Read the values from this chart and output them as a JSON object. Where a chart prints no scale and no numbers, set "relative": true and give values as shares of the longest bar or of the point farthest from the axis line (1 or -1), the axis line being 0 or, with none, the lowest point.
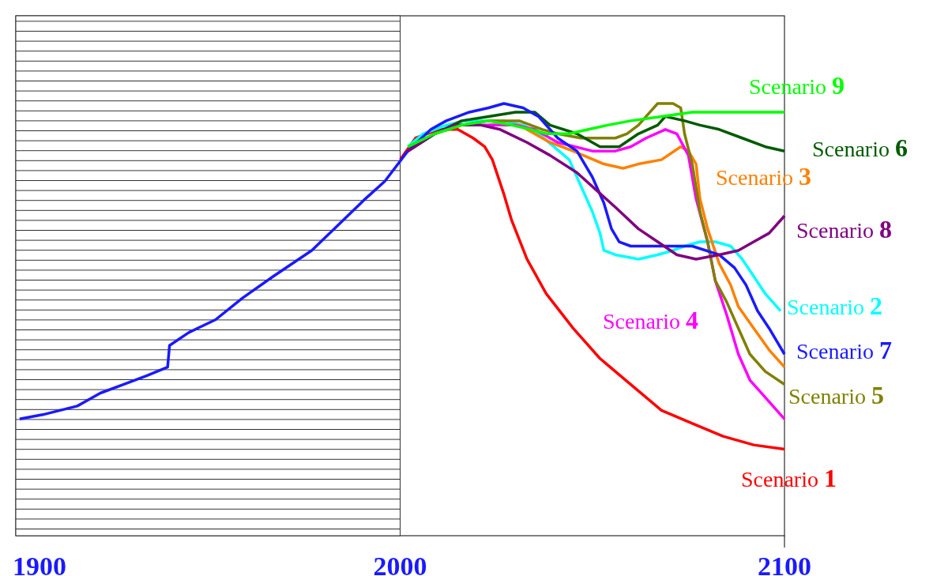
{
  "chart_data": {
    "type": "line",
    "relative": true,
    "xlim": [
      1900,
      2100
    ],
    "xticks": [
      1900,
      2000,
      2100
    ],
    "tick_labels": "x",
    "bands": [
      {
        "axis": "x",
        "from": 1900,
        "to": 2000
      }
    ],
    "series": [
      {
        "name": "Scenario 1",
        "color": "#ff0000",
        "x": [
          2000,
          2004,
          2010,
          2015,
          2019,
          2022,
          2024,
          2027,
          2029,
          2033,
          2038,
          2045,
          2052,
          2060,
          2068,
          2076,
          2084,
          2092,
          2100
        ],
        "values": [
          0.87,
          0.92,
          0.94,
          0.94,
          0.92,
          0.9,
          0.87,
          0.79,
          0.73,
          0.64,
          0.56,
          0.48,
          0.41,
          0.35,
          0.29,
          0.26,
          0.23,
          0.21,
          0.2
        ]
      },
      {
        "name": "Scenario 2",
        "color": "#00ffff",
        "x": [
          2002,
          2006,
          2012,
          2017,
          2022,
          2027,
          2032,
          2036,
          2040,
          2044,
          2047,
          2050,
          2052,
          2053,
          2056,
          2062,
          2067,
          2071,
          2074,
          2078,
          2082,
          2086,
          2089,
          2092,
          2095,
          2099
        ],
        "values": [
          0.9,
          0.93,
          0.95,
          0.96,
          0.96,
          0.96,
          0.95,
          0.93,
          0.9,
          0.87,
          0.81,
          0.75,
          0.7,
          0.66,
          0.65,
          0.64,
          0.65,
          0.66,
          0.67,
          0.68,
          0.68,
          0.67,
          0.64,
          0.6,
          0.56,
          0.52
        ]
      },
      {
        "name": "Scenario 3",
        "color": "#ff8000",
        "x": [
          2023,
          2031,
          2039,
          2045,
          2053,
          2058,
          2062,
          2068,
          2073,
          2075,
          2077,
          2078,
          2080,
          2083,
          2086,
          2088,
          2092,
          2096,
          2100
        ],
        "values": [
          0.95,
          0.95,
          0.91,
          0.89,
          0.86,
          0.85,
          0.86,
          0.87,
          0.9,
          0.89,
          0.86,
          0.78,
          0.71,
          0.63,
          0.58,
          0.53,
          0.48,
          0.43,
          0.39
        ]
      },
      {
        "name": "Scenario 4",
        "color": "#ff00ff",
        "x": [
          2015,
          2022,
          2030,
          2035,
          2041,
          2050,
          2056,
          2060,
          2064,
          2069,
          2072,
          2075,
          2077,
          2080,
          2082,
          2085,
          2088,
          2091,
          2095,
          2100
        ],
        "values": [
          0.95,
          0.95,
          0.95,
          0.94,
          0.91,
          0.89,
          0.89,
          0.9,
          0.92,
          0.94,
          0.93,
          0.88,
          0.78,
          0.68,
          0.59,
          0.51,
          0.42,
          0.36,
          0.32,
          0.27
        ]
      },
      {
        "name": "Scenario 5",
        "color": "#808000",
        "x": [
          2002,
          2009,
          2016,
          2023,
          2031,
          2037,
          2041,
          2047,
          2053,
          2056,
          2059,
          2062,
          2065,
          2067,
          2071,
          2073,
          2074,
          2076,
          2078,
          2080,
          2082,
          2085,
          2088,
          2091,
          2095,
          2100
        ],
        "values": [
          0.89,
          0.93,
          0.95,
          0.96,
          0.96,
          0.94,
          0.93,
          0.92,
          0.92,
          0.92,
          0.93,
          0.95,
          0.98,
          1.0,
          1.0,
          0.99,
          0.93,
          0.86,
          0.75,
          0.68,
          0.59,
          0.54,
          0.48,
          0.42,
          0.38,
          0.35
        ]
      },
      {
        "name": "Scenario 6",
        "color": "#005a00",
        "x": [
          2002,
          2009,
          2016,
          2023,
          2030,
          2035,
          2039,
          2046,
          2052,
          2057,
          2062,
          2067,
          2069,
          2074,
          2078,
          2083,
          2089,
          2095,
          2100
        ],
        "values": [
          0.89,
          0.93,
          0.96,
          0.97,
          0.98,
          0.98,
          0.95,
          0.93,
          0.9,
          0.9,
          0.93,
          0.95,
          0.97,
          0.96,
          0.95,
          0.94,
          0.92,
          0.9,
          0.89
        ]
      },
      {
        "name": "Scenario 7",
        "color": "#1a1aff",
        "x": [
          1901,
          1907,
          1916,
          1922,
          1928,
          1934,
          1939.5,
          1940,
          1945,
          1952,
          1959,
          1967,
          1977,
          1984,
          1991,
          1996,
          2002,
          2008,
          2012,
          2018,
          2023,
          2027,
          2032,
          2036,
          2041,
          2046,
          2050,
          2053,
          2055,
          2057,
          2060,
          2070,
          2076,
          2083,
          2087,
          2090,
          2093,
          2096,
          2100
        ],
        "values": [
          0.27,
          0.28,
          0.3,
          0.33,
          0.35,
          0.37,
          0.39,
          0.44,
          0.47,
          0.5,
          0.55,
          0.6,
          0.66,
          0.72,
          0.78,
          0.82,
          0.89,
          0.94,
          0.96,
          0.98,
          0.99,
          1.0,
          0.99,
          0.97,
          0.92,
          0.89,
          0.83,
          0.77,
          0.71,
          0.68,
          0.67,
          0.67,
          0.67,
          0.65,
          0.62,
          0.58,
          0.52,
          0.48,
          0.42
        ]
      },
      {
        "name": "Scenario 8",
        "color": "#800080",
        "x": [
          2002,
          2009,
          2014,
          2021,
          2026,
          2033,
          2039,
          2046,
          2051,
          2056,
          2062,
          2067,
          2072,
          2077,
          2083,
          2088,
          2092,
          2096,
          2100
        ],
        "values": [
          0.89,
          0.93,
          0.95,
          0.95,
          0.94,
          0.91,
          0.88,
          0.84,
          0.8,
          0.76,
          0.71,
          0.68,
          0.65,
          0.64,
          0.65,
          0.66,
          0.68,
          0.7,
          0.74
        ]
      },
      {
        "name": "Scenario 9",
        "color": "#00ff00",
        "x": [
          2002,
          2009,
          2016,
          2023,
          2029,
          2034,
          2038,
          2044,
          2049,
          2054,
          2060,
          2068,
          2076,
          2087,
          2095,
          2100
        ],
        "values": [
          0.9,
          0.93,
          0.95,
          0.96,
          0.95,
          0.94,
          0.93,
          0.93,
          0.94,
          0.95,
          0.96,
          0.97,
          0.98,
          0.98,
          0.98,
          0.98
        ]
      }
    ]
  }
}
